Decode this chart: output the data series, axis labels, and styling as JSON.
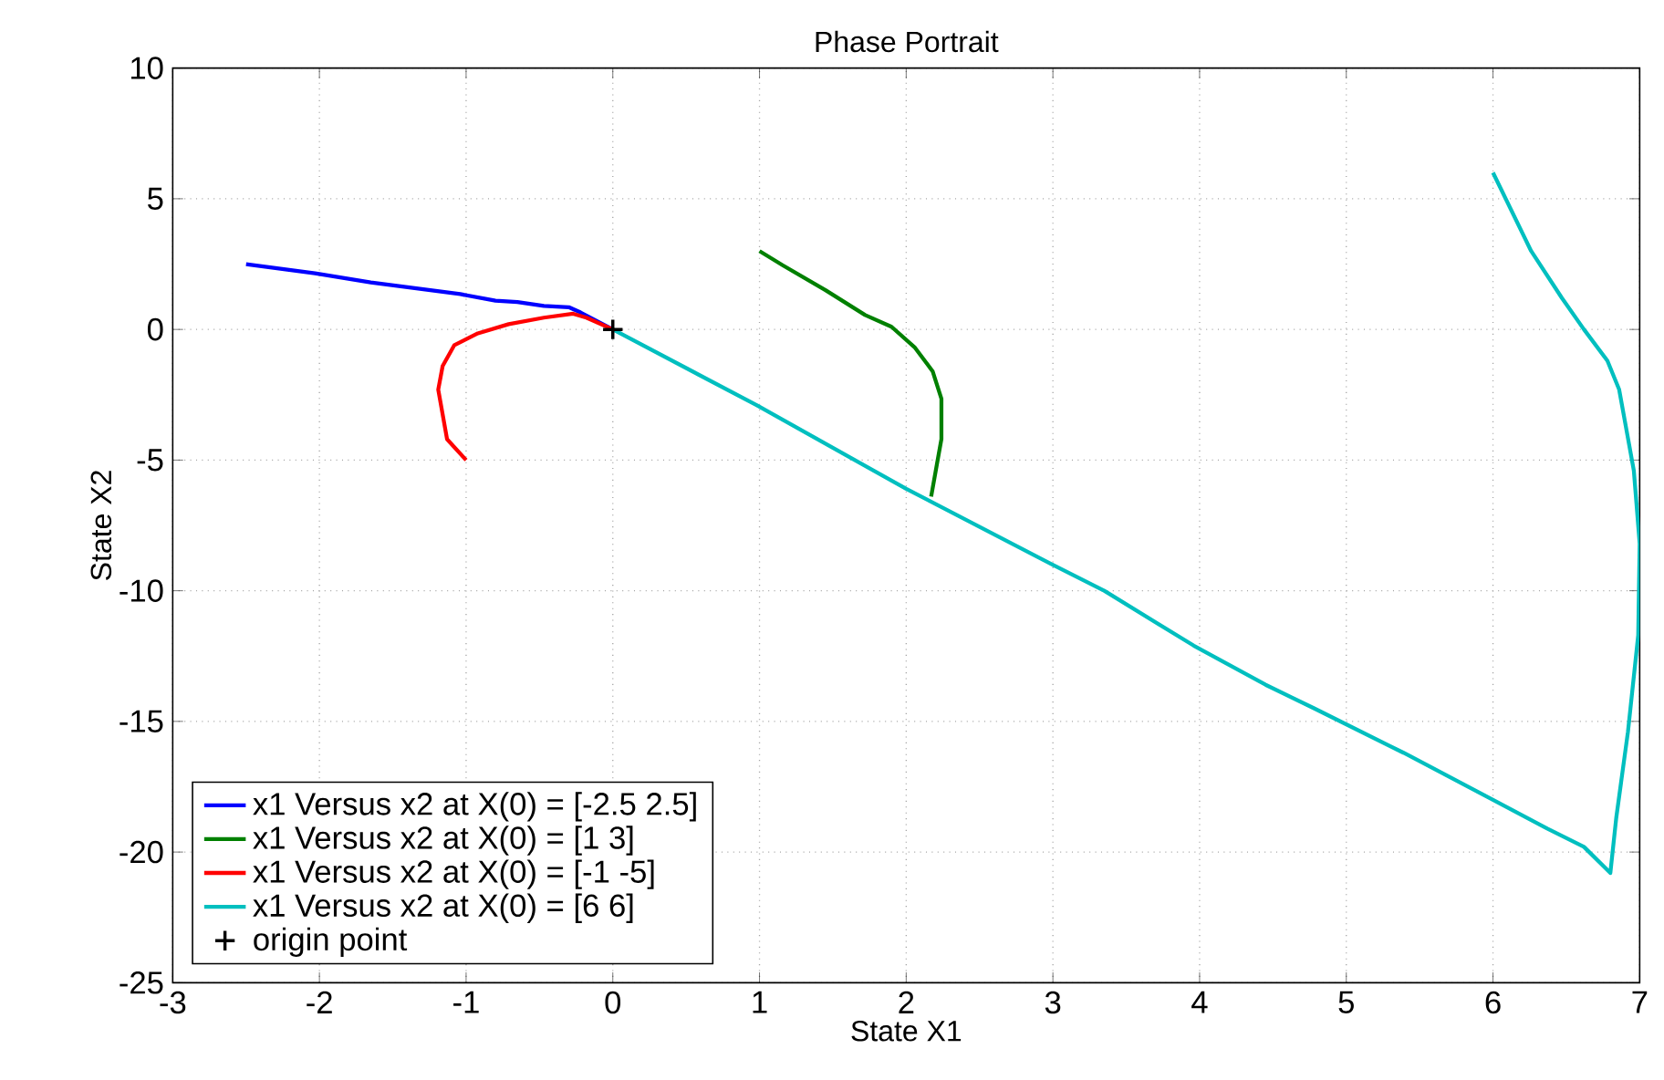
{
  "chart_data": {
    "type": "line",
    "title": "Phase Portrait",
    "xlabel": "State X1",
    "ylabel": "State X2",
    "xlim": [
      -3,
      7
    ],
    "ylim": [
      -25,
      10
    ],
    "xticks": [
      -3,
      -2,
      -1,
      0,
      1,
      2,
      3,
      4,
      5,
      6,
      7
    ],
    "yticks": [
      -25,
      -20,
      -15,
      -10,
      -5,
      0,
      5,
      10
    ],
    "grid": true,
    "legend": "bottom left",
    "line_style": "solid",
    "series": [
      {
        "name": "x1  Versus x2 at X(0) = [-2.5          2.5]",
        "color": "#0000ff",
        "marker": "none",
        "x": [
          -2.5,
          -2.03,
          -1.65,
          -1.04,
          -0.8,
          -0.65,
          -0.47,
          -0.3,
          -0.22,
          0
        ],
        "values": [
          2.5,
          2.15,
          1.8,
          1.35,
          1.1,
          1.05,
          0.9,
          0.85,
          0.65,
          0
        ]
      },
      {
        "name": "x1  Versus x2 at X(0) = [1  3]",
        "color": "#008000",
        "marker": "none",
        "x": [
          1,
          1.16,
          1.45,
          1.72,
          1.9,
          2.06,
          2.18,
          2.24,
          2.24,
          2.2,
          2.17
        ],
        "values": [
          3,
          2.45,
          1.5,
          0.55,
          0.1,
          -0.7,
          -1.6,
          -2.65,
          -4.2,
          -5.45,
          -6.4
        ]
      },
      {
        "name": "x1  Versus x2 at X(0) = [-1 -5]",
        "color": "#ff0000",
        "marker": "none",
        "x": [
          -1,
          -1.13,
          -1.19,
          -1.16,
          -1.08,
          -0.92,
          -0.71,
          -0.47,
          -0.27,
          -0.18,
          0
        ],
        "values": [
          -5,
          -4.2,
          -2.3,
          -1.4,
          -0.6,
          -0.15,
          0.2,
          0.45,
          0.6,
          0.45,
          0
        ]
      },
      {
        "name": "x1  Versus x2 at X(0) = [6  6]",
        "color": "#00bfbf",
        "marker": "none",
        "x": [
          6,
          6.26,
          6.47,
          6.62,
          6.78,
          6.86,
          6.96,
          7.0,
          6.99,
          6.92,
          6.84,
          6.8,
          6.62,
          6.37,
          6.0,
          5.39,
          4.78,
          4.45,
          3.96,
          3.35,
          2.98,
          2.0,
          0.98,
          0
        ],
        "values": [
          6,
          3.0,
          1.2,
          0,
          -1.2,
          -2.3,
          -5.4,
          -8.2,
          -11.7,
          -15.4,
          -18.7,
          -20.8,
          -19.8,
          -19.1,
          -18.0,
          -16.2,
          -14.5,
          -13.6,
          -12.1,
          -10,
          -8.95,
          -6.1,
          -2.9,
          0
        ]
      },
      {
        "name": "origin point",
        "type": "scatter",
        "color": "#000000",
        "marker": "cross",
        "x": [
          0
        ],
        "values": [
          0
        ]
      }
    ]
  }
}
